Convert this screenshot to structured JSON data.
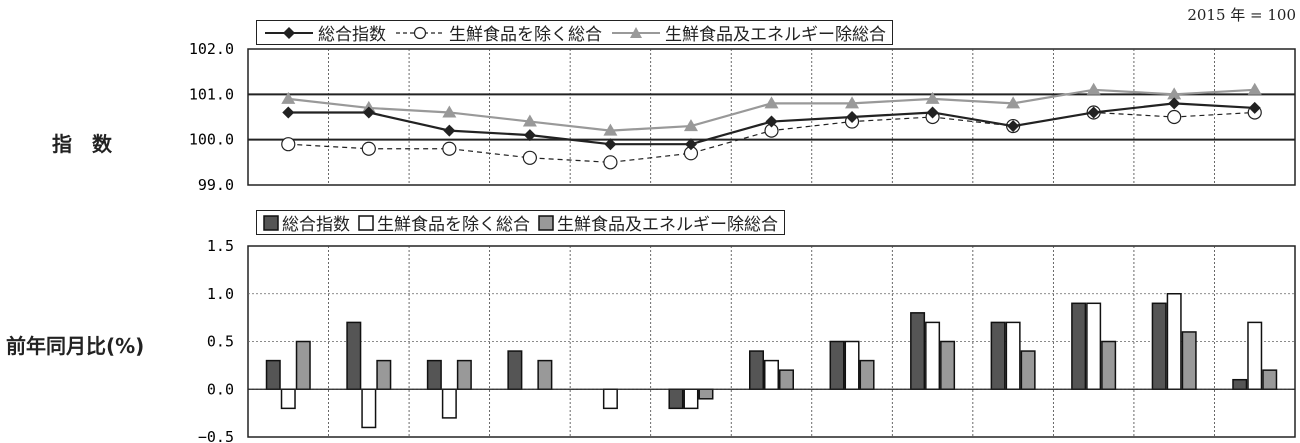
{
  "base_note": "2015 年 = 100",
  "chart_data": [
    {
      "type": "line",
      "row_label": "指　数",
      "ylim": [
        99.0,
        102.0
      ],
      "yticks": [
        "102.0",
        "101.0",
        "100.0",
        "99.0"
      ],
      "ytick_values": [
        102,
        101,
        100,
        99
      ],
      "grid": "vertical dotted",
      "legend_position": "top",
      "series": [
        {
          "name": "総合指数",
          "values": [
            100.6,
            100.6,
            100.2,
            100.1,
            99.9,
            99.9,
            100.4,
            100.5,
            100.6,
            100.3,
            100.6,
            100.8,
            100.7
          ],
          "color": "#222222",
          "marker": "diamond",
          "style": "solid"
        },
        {
          "name": "生鮮食品を除く総合",
          "values": [
            99.9,
            99.8,
            99.8,
            99.6,
            99.5,
            99.7,
            100.2,
            100.4,
            100.5,
            100.3,
            100.6,
            100.5,
            100.6
          ],
          "color": "#222222",
          "marker": "circle",
          "style": "dashed"
        },
        {
          "name": "生鮮食品及エネルギー除総合",
          "values": [
            100.9,
            100.7,
            100.6,
            100.4,
            100.2,
            100.3,
            100.8,
            100.8,
            100.9,
            100.8,
            101.1,
            101.0,
            101.1
          ],
          "color": "#999999",
          "marker": "triangle",
          "style": "solid"
        }
      ]
    },
    {
      "type": "bar",
      "row_label": "前年同月比(%)",
      "ylim": [
        -0.5,
        1.5
      ],
      "yticks": [
        "1.5",
        "1.0",
        "0.5",
        "0.0",
        "−0.5"
      ],
      "ytick_values": [
        1.5,
        1.0,
        0.5,
        0.0,
        -0.5
      ],
      "grid": "horizontal dotted",
      "legend_position": "top",
      "series": [
        {
          "name": "総合指数",
          "values": [
            0.3,
            0.7,
            0.3,
            0.4,
            0.0,
            -0.2,
            0.4,
            0.5,
            0.8,
            0.7,
            0.9,
            0.9,
            0.1
          ],
          "color": "#555555"
        },
        {
          "name": "生鮮食品を除く総合",
          "values": [
            -0.2,
            -0.4,
            -0.3,
            0.0,
            -0.2,
            -0.2,
            0.3,
            0.5,
            0.7,
            0.7,
            0.9,
            1.0,
            0.7
          ],
          "color": "#ffffff"
        },
        {
          "name": "生鮮食品及エネルギー除総合",
          "values": [
            0.5,
            0.3,
            0.3,
            0.3,
            0.0,
            -0.1,
            0.2,
            0.3,
            0.5,
            0.4,
            0.5,
            0.6,
            0.2
          ],
          "color": "#999999"
        }
      ]
    }
  ]
}
